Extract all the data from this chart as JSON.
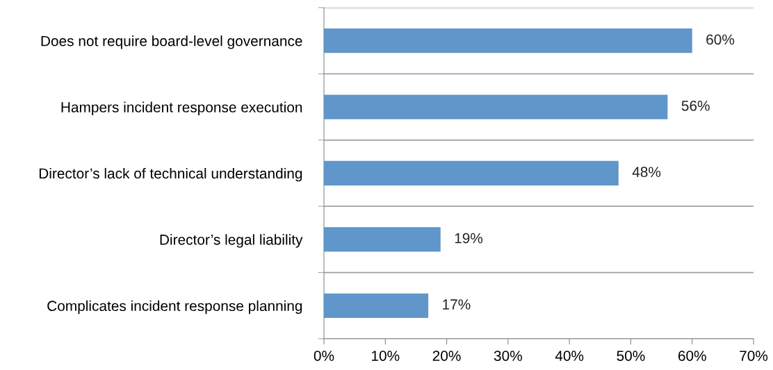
{
  "chart_data": {
    "type": "bar",
    "orientation": "horizontal",
    "categories": [
      "Does not require board-level governance",
      "Hampers incident response execution",
      "Director’s lack of technical understanding",
      "Director’s legal liability",
      "Complicates incident response planning"
    ],
    "values": [
      60,
      56,
      48,
      19,
      17
    ],
    "value_labels": [
      "60%",
      "56%",
      "48%",
      "19%",
      "17%"
    ],
    "color": "#6096c9",
    "xlim": [
      0,
      70
    ],
    "xticks": [
      {
        "value": 0,
        "label": "0%"
      },
      {
        "value": 10,
        "label": "10%"
      },
      {
        "value": 20,
        "label": "20%"
      },
      {
        "value": 30,
        "label": "30%"
      },
      {
        "value": 40,
        "label": "40%"
      },
      {
        "value": 50,
        "label": "50%"
      },
      {
        "value": 60,
        "label": "60%"
      },
      {
        "value": 70,
        "label": "70%"
      }
    ],
    "grid": "y",
    "legend": false
  }
}
